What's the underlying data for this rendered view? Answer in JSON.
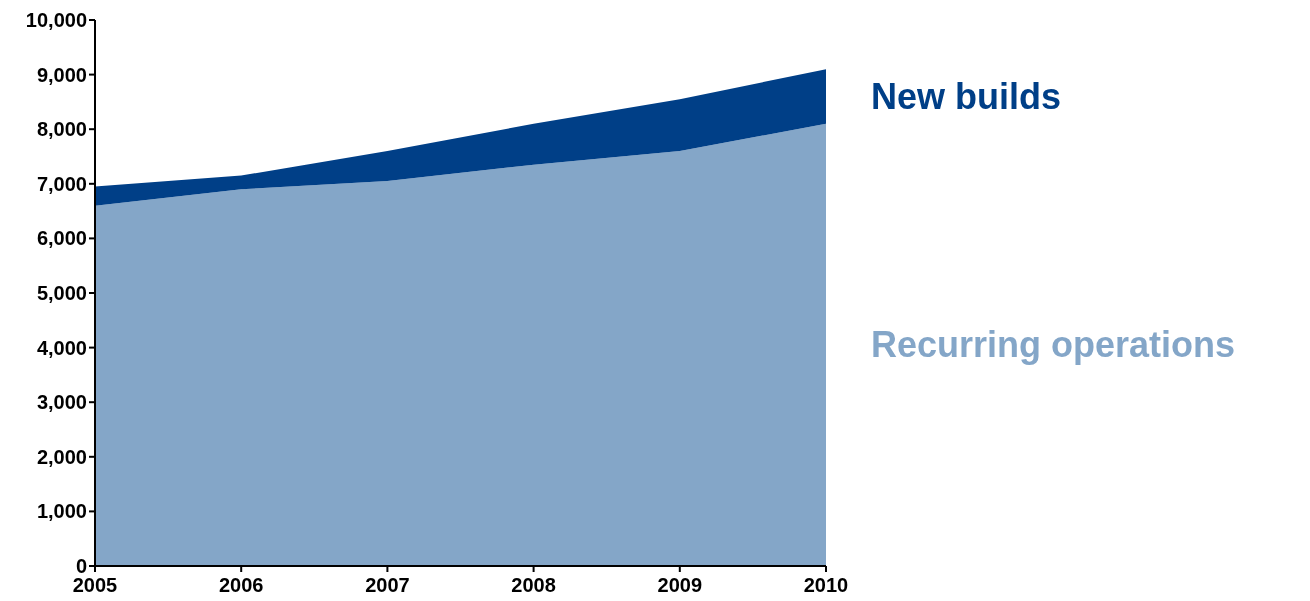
{
  "chart_data": {
    "type": "area",
    "stacked": true,
    "x": [
      2005,
      2006,
      2007,
      2008,
      2009,
      2010
    ],
    "xlim": [
      2005,
      2010
    ],
    "xticks": [
      2005,
      2006,
      2007,
      2008,
      2009,
      2010
    ],
    "ylim": [
      0,
      10000
    ],
    "yticks": [
      {
        "value": 0,
        "label": "0"
      },
      {
        "value": 1000,
        "label": "1,000"
      },
      {
        "value": 2000,
        "label": "2,000"
      },
      {
        "value": 3000,
        "label": "3,000"
      },
      {
        "value": 4000,
        "label": "4,000"
      },
      {
        "value": 5000,
        "label": "5,000"
      },
      {
        "value": 6000,
        "label": "6,000"
      },
      {
        "value": 7000,
        "label": "7,000"
      },
      {
        "value": 8000,
        "label": "8,000"
      },
      {
        "value": 9000,
        "label": "9,000"
      },
      {
        "value": 10000,
        "label": "10,000"
      }
    ],
    "grid": false,
    "series": [
      {
        "name": "Recurring operations",
        "color": "#84a6c8",
        "values": [
          6600,
          6900,
          7050,
          7350,
          7600,
          8100
        ]
      },
      {
        "name": "New builds",
        "color": "#003f87",
        "values": [
          350,
          250,
          550,
          750,
          950,
          1000
        ]
      }
    ]
  }
}
